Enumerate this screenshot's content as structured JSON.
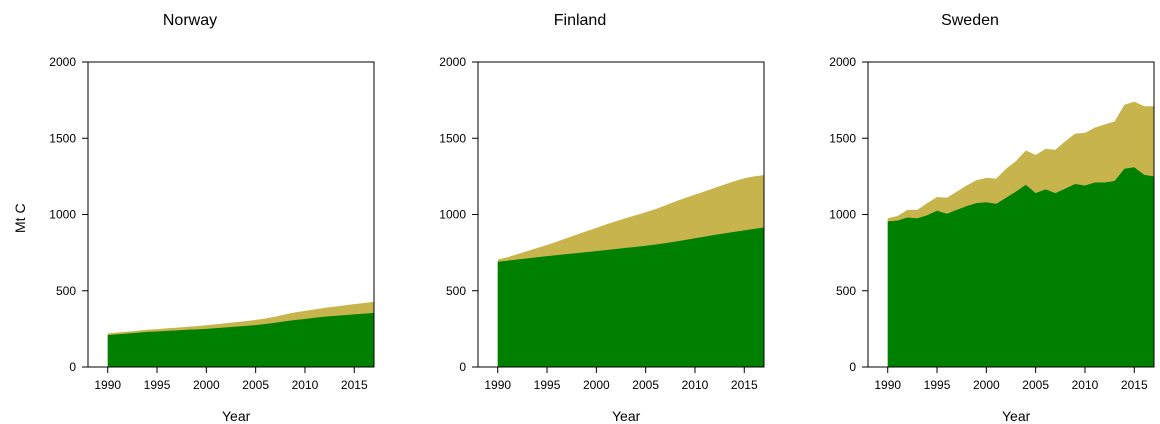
{
  "chart_data": [
    {
      "type": "area",
      "title": "Norway",
      "xlabel": "Year",
      "ylabel": "Mt C",
      "xlim": [
        1988,
        2017
      ],
      "ylim": [
        0,
        2000
      ],
      "xticks": [
        1990,
        1995,
        2000,
        2005,
        2010,
        2015
      ],
      "yticks": [
        0,
        500,
        1000,
        1500,
        2000
      ],
      "x": [
        1990,
        1991,
        1992,
        1993,
        1994,
        1995,
        1996,
        1997,
        1998,
        1999,
        2000,
        2001,
        2002,
        2003,
        2004,
        2005,
        2006,
        2007,
        2008,
        2009,
        2010,
        2011,
        2012,
        2013,
        2014,
        2015,
        2016,
        2017
      ],
      "series": [
        {
          "color": "#008000",
          "stack": "lower",
          "values": [
            210,
            215,
            220,
            225,
            230,
            233,
            237,
            240,
            244,
            247,
            250,
            255,
            260,
            265,
            270,
            275,
            282,
            290,
            300,
            308,
            315,
            323,
            330,
            335,
            340,
            345,
            350,
            355
          ]
        },
        {
          "color": "#c8b44c",
          "stack": "upper",
          "values": [
            220,
            226,
            232,
            238,
            244,
            248,
            253,
            258,
            263,
            268,
            274,
            280,
            287,
            294,
            301,
            309,
            318,
            330,
            345,
            358,
            368,
            378,
            388,
            396,
            404,
            412,
            420,
            428
          ]
        }
      ]
    },
    {
      "type": "area",
      "title": "Finland",
      "xlabel": "Year",
      "ylabel": "",
      "xlim": [
        1988,
        2017
      ],
      "ylim": [
        0,
        2000
      ],
      "xticks": [
        1990,
        1995,
        2000,
        2005,
        2010,
        2015
      ],
      "yticks": [
        0,
        500,
        1000,
        1500,
        2000
      ],
      "x": [
        1990,
        1991,
        1992,
        1993,
        1994,
        1995,
        1996,
        1997,
        1998,
        1999,
        2000,
        2001,
        2002,
        2003,
        2004,
        2005,
        2006,
        2007,
        2008,
        2009,
        2010,
        2011,
        2012,
        2013,
        2014,
        2015,
        2016,
        2017
      ],
      "series": [
        {
          "color": "#008000",
          "stack": "lower",
          "values": [
            690,
            697,
            705,
            712,
            720,
            727,
            734,
            740,
            747,
            753,
            760,
            767,
            774,
            781,
            788,
            795,
            803,
            812,
            822,
            833,
            844,
            855,
            866,
            876,
            886,
            896,
            906,
            915
          ]
        },
        {
          "color": "#c8b44c",
          "stack": "upper",
          "values": [
            705,
            720,
            740,
            760,
            780,
            800,
            822,
            845,
            868,
            890,
            912,
            935,
            956,
            976,
            995,
            1015,
            1035,
            1060,
            1085,
            1108,
            1130,
            1152,
            1175,
            1197,
            1218,
            1238,
            1250,
            1258
          ]
        }
      ]
    },
    {
      "type": "area",
      "title": "Sweden",
      "xlabel": "Year",
      "ylabel": "",
      "xlim": [
        1988,
        2017
      ],
      "ylim": [
        0,
        2000
      ],
      "xticks": [
        1990,
        1995,
        2000,
        2005,
        2010,
        2015
      ],
      "yticks": [
        0,
        500,
        1000,
        1500,
        2000
      ],
      "x": [
        1990,
        1991,
        1992,
        1993,
        1994,
        1995,
        1996,
        1997,
        1998,
        1999,
        2000,
        2001,
        2002,
        2003,
        2004,
        2005,
        2006,
        2007,
        2008,
        2009,
        2010,
        2011,
        2012,
        2013,
        2014,
        2015,
        2016,
        2017
      ],
      "series": [
        {
          "color": "#008000",
          "stack": "lower",
          "values": [
            955,
            960,
            980,
            975,
            995,
            1025,
            1005,
            1030,
            1055,
            1075,
            1080,
            1070,
            1110,
            1150,
            1195,
            1140,
            1165,
            1140,
            1170,
            1200,
            1190,
            1210,
            1210,
            1220,
            1300,
            1310,
            1260,
            1250
          ]
        },
        {
          "color": "#c8b44c",
          "stack": "upper",
          "values": [
            975,
            990,
            1030,
            1030,
            1075,
            1115,
            1110,
            1150,
            1190,
            1225,
            1240,
            1235,
            1300,
            1350,
            1420,
            1390,
            1430,
            1425,
            1480,
            1530,
            1535,
            1570,
            1590,
            1610,
            1720,
            1740,
            1710,
            1710
          ]
        }
      ]
    }
  ]
}
